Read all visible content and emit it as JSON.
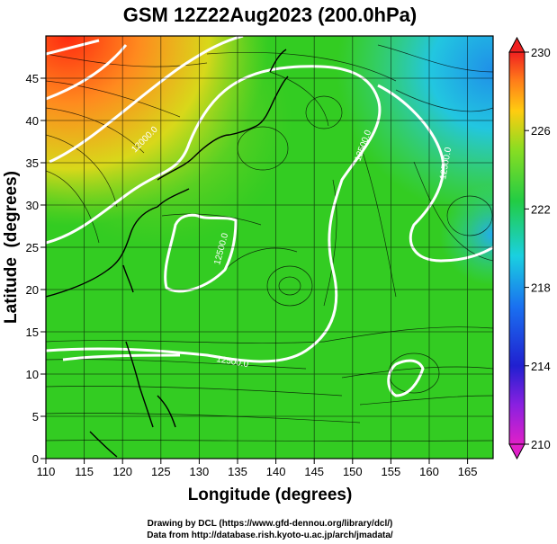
{
  "title": "GSM 12Z22Aug2023 (200.0hPa)",
  "x_label": "Longitude (degrees)",
  "y_label": "Latitude  (degrees)",
  "x_ticks": [
    "110",
    "115",
    "120",
    "125",
    "130",
    "135",
    "140",
    "145",
    "150",
    "155",
    "160",
    "165"
  ],
  "y_ticks": [
    "0",
    "5",
    "10",
    "15",
    "20",
    "25",
    "30",
    "35",
    "40",
    "45"
  ],
  "colorbar_ticks": [
    "210",
    "214",
    "218",
    "222",
    "226",
    "230"
  ],
  "contour_labels": [
    "12000.0",
    "12500.0",
    "12500.0",
    "12500.0",
    "12500.0"
  ],
  "credit_line1": "Drawing by DCL (https://www.gfd-dennou.org/library/dcl/)",
  "credit_line2": "Data from http://database.rish.kyoto-u.ac.jp/arch/jmadata/",
  "colors": {
    "field_base": "#33cc22",
    "warm": "#ff3b1a",
    "cool": "#22bbee",
    "contour": "#ffffff",
    "streamline": "#000000"
  }
}
